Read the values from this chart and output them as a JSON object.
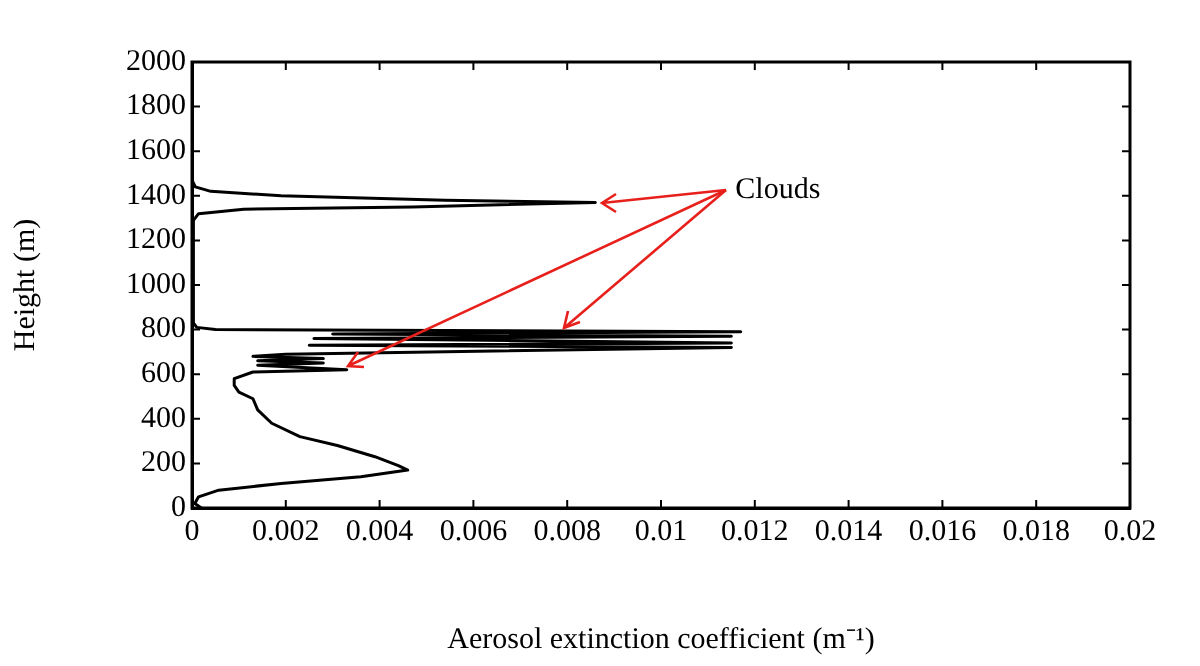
{
  "chart_data": {
    "type": "line",
    "xlabel": "Aerosol extinction coefficient (m⁻¹)",
    "ylabel": "Height (m)",
    "xlim": [
      0,
      0.02
    ],
    "xticks": [
      0,
      0.002,
      0.004,
      0.006,
      0.008,
      0.01,
      0.012,
      0.014,
      0.016,
      0.018,
      0.02
    ],
    "ylim": [
      0,
      2000
    ],
    "yticks": [
      0,
      200,
      400,
      600,
      800,
      1000,
      1200,
      1400,
      1600,
      1800,
      2000
    ],
    "grid": false,
    "legend": false,
    "marker": "none",
    "line_style": "solid",
    "annotations": [
      {
        "text": "Clouds",
        "x": 0.0086,
        "y": 1370
      }
    ],
    "series": [
      {
        "color": "#000000",
        "x": [
          0.0002,
          6e-05,
          0.00014,
          0.00057,
          0.0019,
          0.0036,
          0.0046,
          0.0044,
          0.0039,
          0.0031,
          0.0023,
          0.0017,
          0.0014,
          0.0013,
          0.001,
          0.0009,
          0.0009,
          0.0013,
          0.0033,
          0.0014,
          0.0028,
          0.0014,
          0.0028,
          0.0013,
          0.002,
          0.0115,
          0.0025,
          0.0115,
          0.0026,
          0.0115,
          0.003,
          0.0117,
          0.0005,
          0.0001,
          3e-05,
          3e-05,
          0.00014,
          0.0011,
          0.0047,
          0.0086,
          0.0054,
          0.0019,
          0.0004,
          7e-05,
          0
        ],
        "values": [
          0,
          20,
          50,
          80,
          110,
          140,
          170,
          190,
          230,
          280,
          320,
          380,
          440,
          490,
          520,
          550,
          580,
          610,
          620,
          640,
          650,
          660,
          670,
          680,
          690,
          720,
          730,
          740,
          760,
          770,
          780,
          790,
          800,
          810,
          830,
          1290,
          1320,
          1340,
          1350,
          1370,
          1380,
          1400,
          1420,
          1440,
          1470
        ]
      }
    ]
  }
}
